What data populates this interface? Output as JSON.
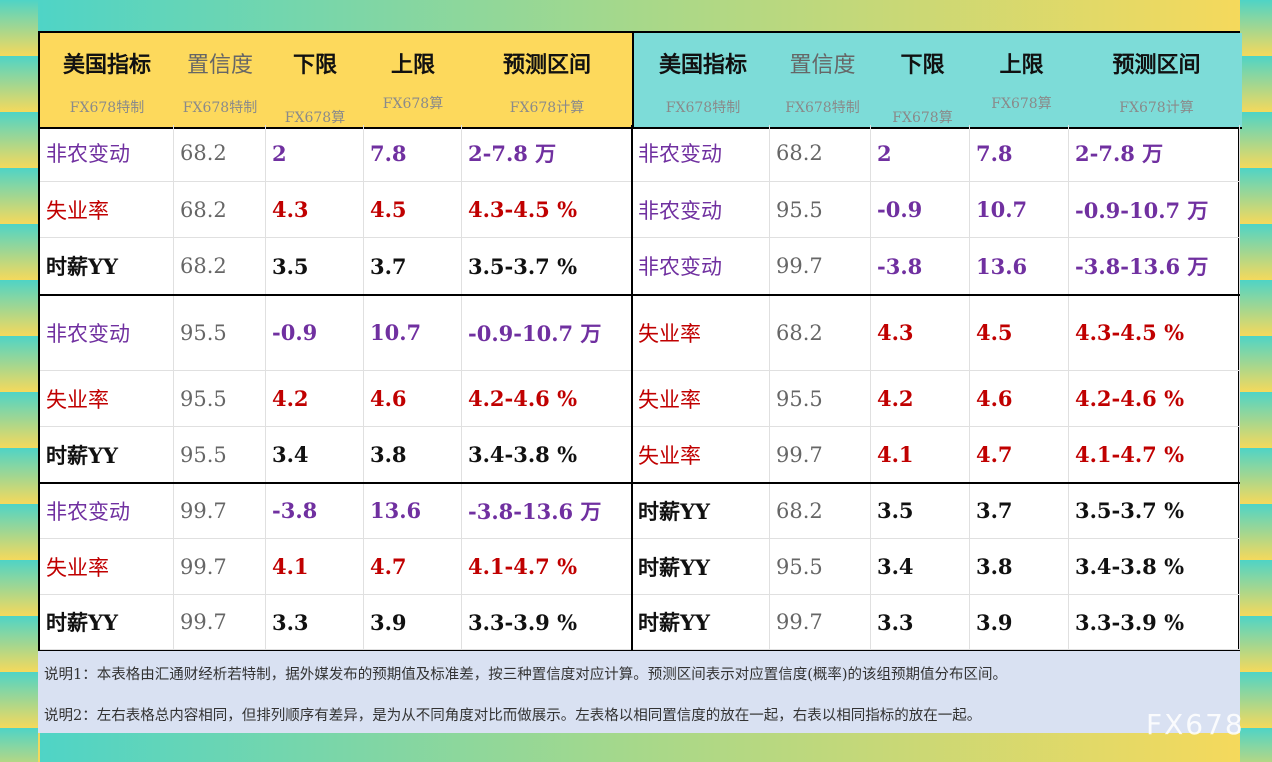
{
  "colors": {
    "header_left": "#fdd95c",
    "header_right": "#7ddcd8",
    "nonfarm": "#7030a0",
    "unemployment": "#c00000",
    "wage": "#111111",
    "confidence": "#666666",
    "notes_bg": "#d9e1f2"
  },
  "headers": [
    {
      "title": "美国指标",
      "sub": "FX678特制"
    },
    {
      "title": "置信度",
      "sub": "FX678特制"
    },
    {
      "title": "下限",
      "sub": "FX678算"
    },
    {
      "title": "上限",
      "sub": "FX678算"
    },
    {
      "title": "预测区间",
      "sub": "FX678计算"
    }
  ],
  "left_rows": [
    {
      "indicator": "非农变动",
      "conf": "68.2",
      "low": "2",
      "high": "7.8",
      "range": "2-7.8 万",
      "color": "purple"
    },
    {
      "indicator": "失业率",
      "conf": "68.2",
      "low": "4.3",
      "high": "4.5",
      "range": "4.3-4.5 %",
      "color": "red"
    },
    {
      "indicator": "时薪YY",
      "conf": "68.2",
      "low": "3.5",
      "high": "3.7",
      "range": "3.5-3.7 %",
      "color": "black"
    },
    {
      "indicator": "非农变动",
      "conf": "95.5",
      "low": "-0.9",
      "high": "10.7",
      "range": "-0.9-10.7 万",
      "color": "purple"
    },
    {
      "indicator": "失业率",
      "conf": "95.5",
      "low": "4.2",
      "high": "4.6",
      "range": "4.2-4.6 %",
      "color": "red"
    },
    {
      "indicator": "时薪YY",
      "conf": "95.5",
      "low": "3.4",
      "high": "3.8",
      "range": "3.4-3.8 %",
      "color": "black"
    },
    {
      "indicator": "非农变动",
      "conf": "99.7",
      "low": "-3.8",
      "high": "13.6",
      "range": "-3.8-13.6 万",
      "color": "purple"
    },
    {
      "indicator": "失业率",
      "conf": "99.7",
      "low": "4.1",
      "high": "4.7",
      "range": "4.1-4.7 %",
      "color": "red"
    },
    {
      "indicator": "时薪YY",
      "conf": "99.7",
      "low": "3.3",
      "high": "3.9",
      "range": "3.3-3.9 %",
      "color": "black"
    }
  ],
  "right_rows": [
    {
      "indicator": "非农变动",
      "conf": "68.2",
      "low": "2",
      "high": "7.8",
      "range": "2-7.8 万",
      "color": "purple"
    },
    {
      "indicator": "非农变动",
      "conf": "95.5",
      "low": "-0.9",
      "high": "10.7",
      "range": "-0.9-10.7 万",
      "color": "purple"
    },
    {
      "indicator": "非农变动",
      "conf": "99.7",
      "low": "-3.8",
      "high": "13.6",
      "range": "-3.8-13.6 万",
      "color": "purple"
    },
    {
      "indicator": "失业率",
      "conf": "68.2",
      "low": "4.3",
      "high": "4.5",
      "range": "4.3-4.5 %",
      "color": "red"
    },
    {
      "indicator": "失业率",
      "conf": "95.5",
      "low": "4.2",
      "high": "4.6",
      "range": "4.2-4.6 %",
      "color": "red"
    },
    {
      "indicator": "失业率",
      "conf": "99.7",
      "low": "4.1",
      "high": "4.7",
      "range": "4.1-4.7 %",
      "color": "red"
    },
    {
      "indicator": "时薪YY",
      "conf": "68.2",
      "low": "3.5",
      "high": "3.7",
      "range": "3.5-3.7 %",
      "color": "black"
    },
    {
      "indicator": "时薪YY",
      "conf": "95.5",
      "low": "3.4",
      "high": "3.8",
      "range": "3.4-3.8 %",
      "color": "black"
    },
    {
      "indicator": "时薪YY",
      "conf": "99.7",
      "low": "3.3",
      "high": "3.9",
      "range": "3.3-3.9 %",
      "color": "black"
    }
  ],
  "notes": {
    "note1": "说明1：本表格由汇通财经析若特制，据外媒发布的预期值及标准差，按三种置信度对应计算。预测区间表示对应置信度(概率)的该组预期值分布区间。",
    "note2": "说明2：左右表格总内容相同，但排列顺序有差异，是为从不同角度对比而做展示。左表格以相同置信度的放在一起，右表以相同指标的放在一起。"
  },
  "watermark": "FX678"
}
